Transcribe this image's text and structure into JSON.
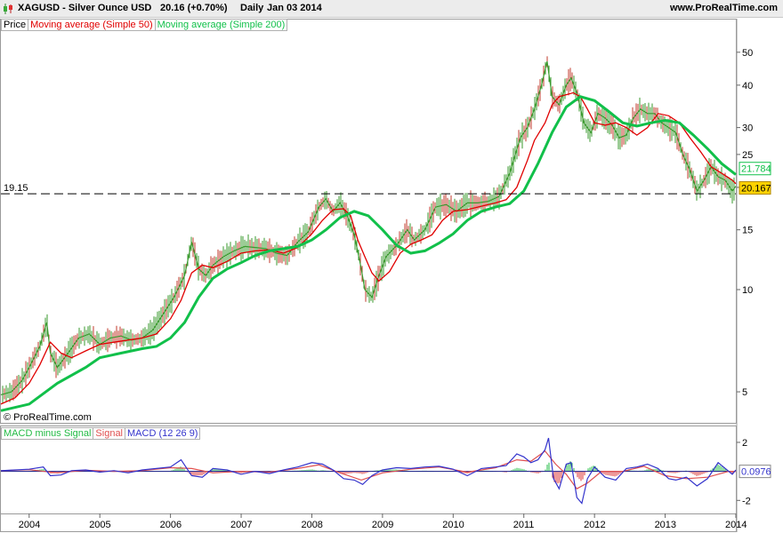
{
  "header": {
    "symbol": "XAGUSD - Silver Ounce USD",
    "price": "20.16 (+0.70%)",
    "period": "Daily",
    "date": "Jan 03 2014",
    "brand": "www.ProRealTime.com"
  },
  "legend": {
    "price": "Price",
    "ma50": "Moving average (Simple 50)",
    "ma200": "Moving average (Simple 200)"
  },
  "macd_legend": {
    "hist": "MACD minus Signal",
    "signal": "Signal",
    "macd": "MACD (12 26 9)"
  },
  "watermark": "© ProRealTime.com",
  "hline": {
    "value": 19.15,
    "label": "19.15"
  },
  "colors": {
    "price": "#3a9a2e",
    "price_down": "#c0392b",
    "ma50": "#e00000",
    "ma200": "#11c04a",
    "macd": "#3333cc",
    "signal": "#e05050",
    "hist_pos": "#22bb44",
    "hist_neg": "#dd3333",
    "last_price_bg": "#ffd200"
  },
  "badges": {
    "ma200": "21.784",
    "price": "20.167",
    "macd": "0.0976"
  },
  "chart_data": [
    {
      "type": "line",
      "title": "XAGUSD - Silver Ounce USD",
      "scale": "log",
      "ylim": [
        4.2,
        56
      ],
      "yticks": [
        5,
        10,
        15,
        20,
        25,
        30,
        40,
        50
      ],
      "x_ticks": [
        "2004",
        "2005",
        "2006",
        "2007",
        "2008",
        "2009",
        "2010",
        "2011",
        "2012",
        "2013",
        "2014"
      ],
      "xlim": [
        2003.6,
        2014.0
      ],
      "series": [
        {
          "name": "Price",
          "x": [
            2003.6,
            2003.75,
            2003.9,
            2004.0,
            2004.15,
            2004.25,
            2004.3,
            2004.4,
            2004.55,
            2004.7,
            2004.85,
            2005.0,
            2005.15,
            2005.3,
            2005.45,
            2005.6,
            2005.75,
            2005.9,
            2006.05,
            2006.2,
            2006.3,
            2006.4,
            2006.5,
            2006.6,
            2006.75,
            2006.9,
            2007.05,
            2007.2,
            2007.35,
            2007.5,
            2007.65,
            2007.8,
            2007.95,
            2008.1,
            2008.2,
            2008.3,
            2008.4,
            2008.5,
            2008.6,
            2008.7,
            2008.75,
            2008.85,
            2008.95,
            2009.05,
            2009.2,
            2009.35,
            2009.45,
            2009.6,
            2009.75,
            2009.9,
            2010.05,
            2010.2,
            2010.35,
            2010.5,
            2010.65,
            2010.8,
            2010.95,
            2011.05,
            2011.15,
            2011.25,
            2011.33,
            2011.4,
            2011.5,
            2011.6,
            2011.67,
            2011.75,
            2011.85,
            2011.95,
            2012.05,
            2012.15,
            2012.25,
            2012.35,
            2012.45,
            2012.55,
            2012.65,
            2012.75,
            2012.85,
            2012.95,
            2013.05,
            2013.15,
            2013.25,
            2013.35,
            2013.45,
            2013.55,
            2013.65,
            2013.75,
            2013.85,
            2013.95,
            2014.0
          ],
          "values": [
            4.9,
            5.0,
            5.4,
            5.9,
            6.8,
            8.0,
            6.5,
            5.9,
            6.5,
            7.2,
            7.4,
            6.9,
            7.2,
            7.3,
            7.1,
            7.2,
            7.6,
            8.5,
            9.5,
            11.0,
            13.8,
            11.5,
            11.0,
            11.8,
            12.5,
            13.0,
            13.4,
            13.3,
            13.2,
            12.8,
            12.6,
            13.8,
            14.8,
            17.5,
            18.5,
            17.0,
            18.0,
            16.5,
            14.5,
            11.5,
            10.0,
            9.5,
            11.0,
            12.5,
            13.5,
            15.0,
            14.0,
            15.0,
            17.5,
            17.8,
            17.0,
            18.0,
            18.0,
            18.2,
            18.8,
            22.0,
            28.0,
            30.0,
            34.0,
            40.0,
            47.0,
            37.0,
            35.0,
            40.0,
            42.0,
            38.0,
            31.0,
            29.0,
            33.0,
            32.0,
            30.5,
            28.0,
            28.5,
            32.0,
            34.0,
            33.0,
            33.0,
            31.0,
            30.0,
            29.0,
            25.0,
            22.5,
            19.5,
            21.0,
            23.0,
            21.5,
            21.0,
            19.5,
            20.16
          ]
        },
        {
          "name": "Moving average (Simple 50)",
          "x": [
            2003.6,
            2003.8,
            2004.0,
            2004.15,
            2004.3,
            2004.45,
            2004.6,
            2004.8,
            2005.0,
            2005.2,
            2005.4,
            2005.6,
            2005.8,
            2006.0,
            2006.15,
            2006.3,
            2006.45,
            2006.6,
            2006.8,
            2007.0,
            2007.2,
            2007.4,
            2007.6,
            2007.8,
            2008.0,
            2008.15,
            2008.3,
            2008.45,
            2008.55,
            2008.65,
            2008.75,
            2008.85,
            2008.95,
            2009.1,
            2009.25,
            2009.4,
            2009.55,
            2009.7,
            2009.85,
            2010.0,
            2010.2,
            2010.4,
            2010.6,
            2010.75,
            2010.9,
            2011.05,
            2011.15,
            2011.3,
            2011.4,
            2011.5,
            2011.6,
            2011.7,
            2011.8,
            2011.9,
            2012.0,
            2012.15,
            2012.3,
            2012.45,
            2012.6,
            2012.75,
            2012.9,
            2013.05,
            2013.2,
            2013.35,
            2013.5,
            2013.65,
            2013.8,
            2013.95,
            2014.0
          ],
          "values": [
            4.6,
            4.8,
            5.3,
            6.0,
            7.0,
            6.5,
            6.3,
            6.6,
            6.9,
            7.0,
            7.1,
            7.2,
            7.4,
            8.2,
            9.3,
            11.2,
            11.8,
            11.6,
            12.1,
            12.8,
            13.0,
            13.1,
            12.8,
            13.3,
            14.6,
            16.0,
            17.2,
            17.3,
            16.5,
            14.0,
            12.5,
            11.2,
            10.6,
            11.3,
            12.8,
            13.6,
            14.0,
            14.5,
            16.0,
            17.0,
            17.2,
            17.6,
            18.0,
            18.4,
            20.0,
            24.0,
            27.5,
            31.0,
            35.0,
            37.0,
            37.5,
            38.0,
            37.0,
            34.0,
            31.0,
            30.5,
            31.0,
            30.0,
            28.5,
            30.0,
            33.0,
            32.5,
            31.0,
            28.0,
            25.5,
            23.0,
            22.0,
            21.0,
            20.5
          ]
        },
        {
          "name": "Moving average (Simple 200)",
          "x": [
            2003.6,
            2004.0,
            2004.4,
            2004.8,
            2005.0,
            2005.3,
            2005.6,
            2005.8,
            2006.0,
            2006.2,
            2006.4,
            2006.6,
            2006.8,
            2007.0,
            2007.2,
            2007.4,
            2007.6,
            2007.8,
            2008.0,
            2008.2,
            2008.4,
            2008.6,
            2008.8,
            2009.0,
            2009.2,
            2009.4,
            2009.6,
            2009.8,
            2010.0,
            2010.2,
            2010.4,
            2010.6,
            2010.8,
            2011.0,
            2011.2,
            2011.4,
            2011.6,
            2011.8,
            2012.0,
            2012.2,
            2012.4,
            2012.6,
            2012.8,
            2013.0,
            2013.2,
            2013.4,
            2013.6,
            2013.8,
            2014.0
          ],
          "values": [
            4.4,
            4.6,
            5.3,
            5.9,
            6.3,
            6.5,
            6.7,
            6.8,
            7.2,
            8.0,
            9.5,
            10.8,
            11.5,
            12.0,
            12.6,
            13.0,
            13.2,
            13.4,
            14.0,
            15.0,
            16.3,
            17.0,
            16.5,
            15.0,
            13.5,
            12.8,
            13.0,
            13.7,
            14.6,
            16.0,
            17.0,
            17.5,
            17.9,
            19.5,
            23.5,
            29.0,
            34.5,
            37.0,
            36.0,
            33.5,
            31.0,
            30.3,
            31.0,
            31.5,
            31.0,
            28.5,
            26.0,
            23.5,
            21.8
          ]
        }
      ]
    },
    {
      "type": "line",
      "title": "MACD (12 26 9)",
      "ylim": [
        -2.9,
        3.1
      ],
      "yticks": [
        2,
        -2
      ],
      "xlim": [
        2003.6,
        2014.0
      ],
      "series": [
        {
          "name": "MACD (12 26 9)",
          "x": [
            2003.6,
            2003.8,
            2004.0,
            2004.2,
            2004.3,
            2004.45,
            2004.6,
            2004.8,
            2005.0,
            2005.2,
            2005.4,
            2005.6,
            2005.8,
            2006.0,
            2006.15,
            2006.3,
            2006.45,
            2006.6,
            2006.8,
            2007.0,
            2007.2,
            2007.4,
            2007.6,
            2007.8,
            2008.0,
            2008.15,
            2008.3,
            2008.45,
            2008.6,
            2008.72,
            2008.85,
            2009.0,
            2009.2,
            2009.4,
            2009.6,
            2009.8,
            2010.0,
            2010.2,
            2010.4,
            2010.6,
            2010.75,
            2010.9,
            2011.0,
            2011.1,
            2011.2,
            2011.3,
            2011.35,
            2011.42,
            2011.5,
            2011.6,
            2011.67,
            2011.75,
            2011.82,
            2011.9,
            2012.0,
            2012.15,
            2012.3,
            2012.45,
            2012.6,
            2012.75,
            2012.9,
            2013.05,
            2013.15,
            2013.3,
            2013.45,
            2013.6,
            2013.75,
            2013.85,
            2013.95,
            2014.0
          ],
          "values": [
            0.05,
            0.1,
            0.15,
            0.3,
            -0.3,
            -0.25,
            0.05,
            0.1,
            -0.05,
            0.05,
            -0.1,
            0.1,
            0.2,
            0.3,
            0.8,
            -0.3,
            -0.4,
            0.2,
            0.1,
            -0.2,
            0.0,
            -0.15,
            0.1,
            0.3,
            0.6,
            0.5,
            0.1,
            -0.5,
            -0.6,
            -0.9,
            -0.3,
            0.1,
            0.25,
            0.2,
            0.3,
            0.35,
            0.15,
            -0.3,
            0.2,
            0.3,
            0.4,
            1.2,
            1.0,
            0.6,
            0.8,
            1.5,
            2.3,
            -0.5,
            -1.2,
            0.5,
            0.6,
            -1.8,
            -2.2,
            -0.5,
            0.3,
            -0.4,
            -0.6,
            0.2,
            0.3,
            0.5,
            0.2,
            -0.5,
            -0.6,
            -0.4,
            -1.0,
            -0.5,
            0.6,
            0.2,
            -0.2,
            0.1
          ]
        },
        {
          "name": "Signal",
          "x": [
            2003.6,
            2004.0,
            2004.4,
            2004.8,
            2005.2,
            2005.6,
            2006.0,
            2006.3,
            2006.6,
            2007.0,
            2007.4,
            2007.8,
            2008.1,
            2008.4,
            2008.7,
            2009.0,
            2009.4,
            2009.8,
            2010.2,
            2010.6,
            2010.9,
            2011.1,
            2011.3,
            2011.45,
            2011.6,
            2011.75,
            2011.9,
            2012.1,
            2012.4,
            2012.7,
            2013.0,
            2013.3,
            2013.6,
            2013.9,
            2014.0
          ],
          "values": [
            0.05,
            0.12,
            -0.1,
            0.08,
            0.0,
            0.05,
            0.25,
            0.2,
            -0.1,
            0.0,
            -0.05,
            0.2,
            0.45,
            -0.1,
            -0.6,
            -0.1,
            0.15,
            0.3,
            -0.05,
            0.25,
            0.8,
            0.7,
            1.4,
            0.5,
            -0.2,
            -1.2,
            -0.8,
            0.0,
            0.0,
            0.35,
            -0.3,
            -0.5,
            -0.4,
            0.0,
            0.0
          ]
        }
      ]
    }
  ]
}
